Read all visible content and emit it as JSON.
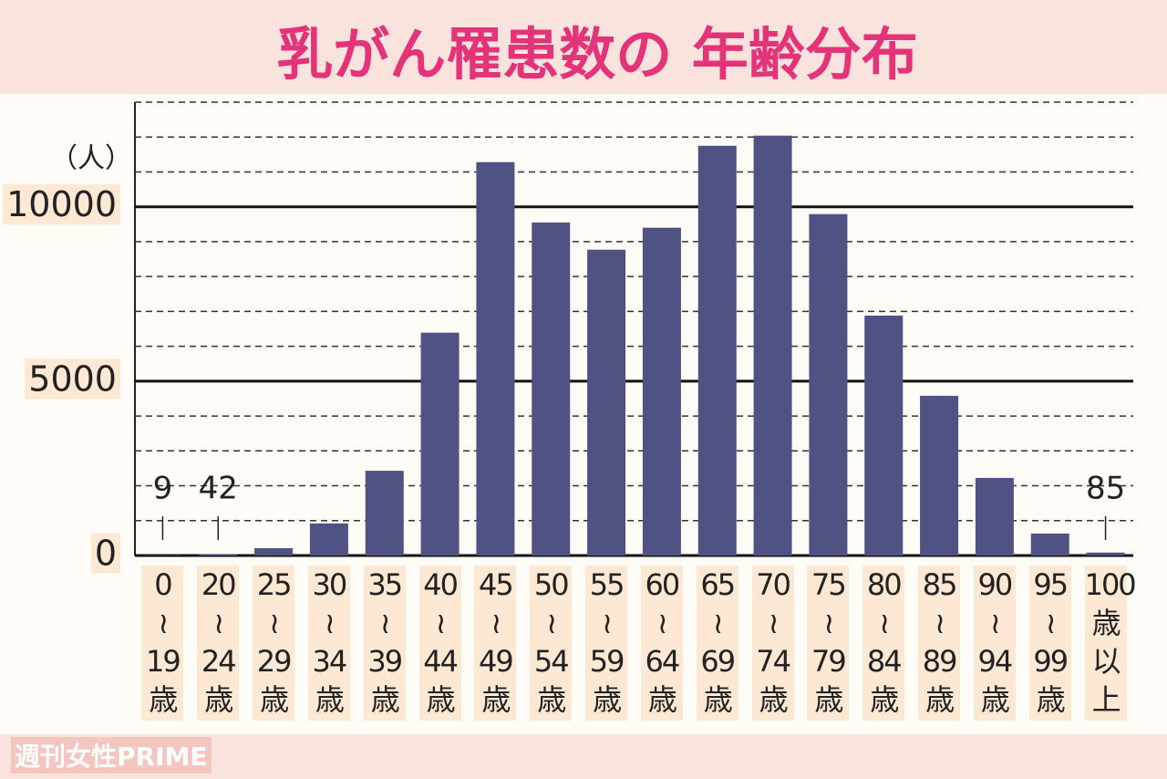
{
  "chart_data": {
    "type": "bar",
    "title": "乳がん罹患数の 年齢分布",
    "y_label": "（人）",
    "watermark": "週刊女性PRIME",
    "categories": [
      "0\n≀\n19\n歳",
      "20\n≀\n24\n歳",
      "25\n≀\n29\n歳",
      "30\n≀\n34\n歳",
      "35\n≀\n39\n歳",
      "40\n≀\n44\n歳",
      "45\n≀\n49\n歳",
      "50\n≀\n54\n歳",
      "55\n≀\n59\n歳",
      "60\n≀\n64\n歳",
      "65\n≀\n69\n歳",
      "70\n≀\n74\n歳",
      "75\n≀\n79\n歳",
      "80\n≀\n84\n歳",
      "85\n≀\n89\n歳",
      "90\n≀\n94\n歳",
      "95\n≀\n99\n歳",
      "100\n歳\n以\n上"
    ],
    "values": [
      9,
      42,
      210,
      920,
      2430,
      6390,
      11280,
      9550,
      8770,
      9400,
      11750,
      12040,
      9790,
      6880,
      4580,
      2225,
      630,
      85
    ],
    "value_labels": [
      "9",
      "42",
      null,
      null,
      null,
      null,
      null,
      null,
      null,
      null,
      null,
      null,
      null,
      null,
      null,
      null,
      null,
      "85"
    ],
    "color": "#4f5283",
    "ylim": [
      0,
      13000
    ],
    "yticks": [
      0,
      5000,
      10000
    ],
    "minor_yticks": [
      1000,
      2000,
      3000,
      4000,
      6000,
      7000,
      8000,
      9000,
      11000,
      12000,
      13000
    ],
    "grid": true
  }
}
